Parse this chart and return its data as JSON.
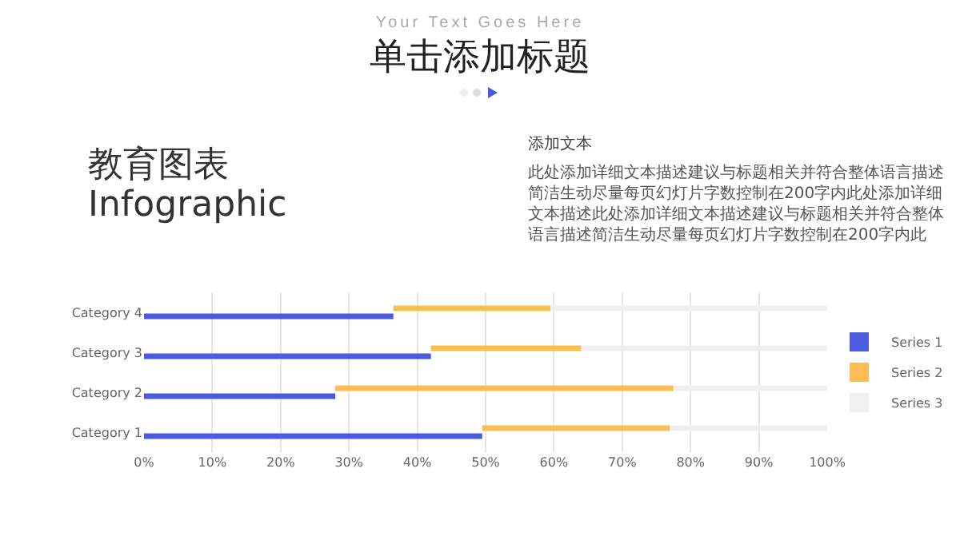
{
  "chart_data": {
    "type": "bar",
    "orientation": "horizontal",
    "stacked": true,
    "title": "单击添加标题",
    "subtitle": "Your Text Goes Here",
    "annotations": [
      "教育图表",
      "Infographic",
      "添加文本",
      "此处添加详细文本描述建议与标题相关并符合整体语言描述简洁生动尽量每页幻灯片字数控制在200字内此处添加详细文本描述此处添加详细文本描述建议与标题相关并符合整体语言描述简洁生动尽量每页幻灯片字数控制在200字内此"
    ],
    "categories": [
      "Category 4",
      "Category 3",
      "Category 2",
      "Category 1"
    ],
    "series": [
      {
        "name": "Series 1",
        "color": "#4a5be0",
        "values": [
          36.5,
          42,
          28,
          49.5
        ]
      },
      {
        "name": "Series 2",
        "color": "#f9bd52",
        "values": [
          23,
          22,
          49.5,
          27.5
        ]
      },
      {
        "name": "Series 3",
        "color": "#f0f0f0",
        "values": [
          40.5,
          36,
          22.5,
          23
        ]
      }
    ],
    "xlim": [
      0,
      100
    ],
    "xticks": [
      {
        "value": 0,
        "label": "0%"
      },
      {
        "value": 10,
        "label": "10%"
      },
      {
        "value": 20,
        "label": "20%"
      },
      {
        "value": 30,
        "label": "30%"
      },
      {
        "value": 40,
        "label": "40%"
      },
      {
        "value": 50,
        "label": "50%"
      },
      {
        "value": 60,
        "label": "60%"
      },
      {
        "value": 70,
        "label": "70%"
      },
      {
        "value": 80,
        "label": "80%"
      },
      {
        "value": 90,
        "label": "90%"
      },
      {
        "value": 100,
        "label": "100%"
      }
    ],
    "grid": "x",
    "legend": "right"
  }
}
